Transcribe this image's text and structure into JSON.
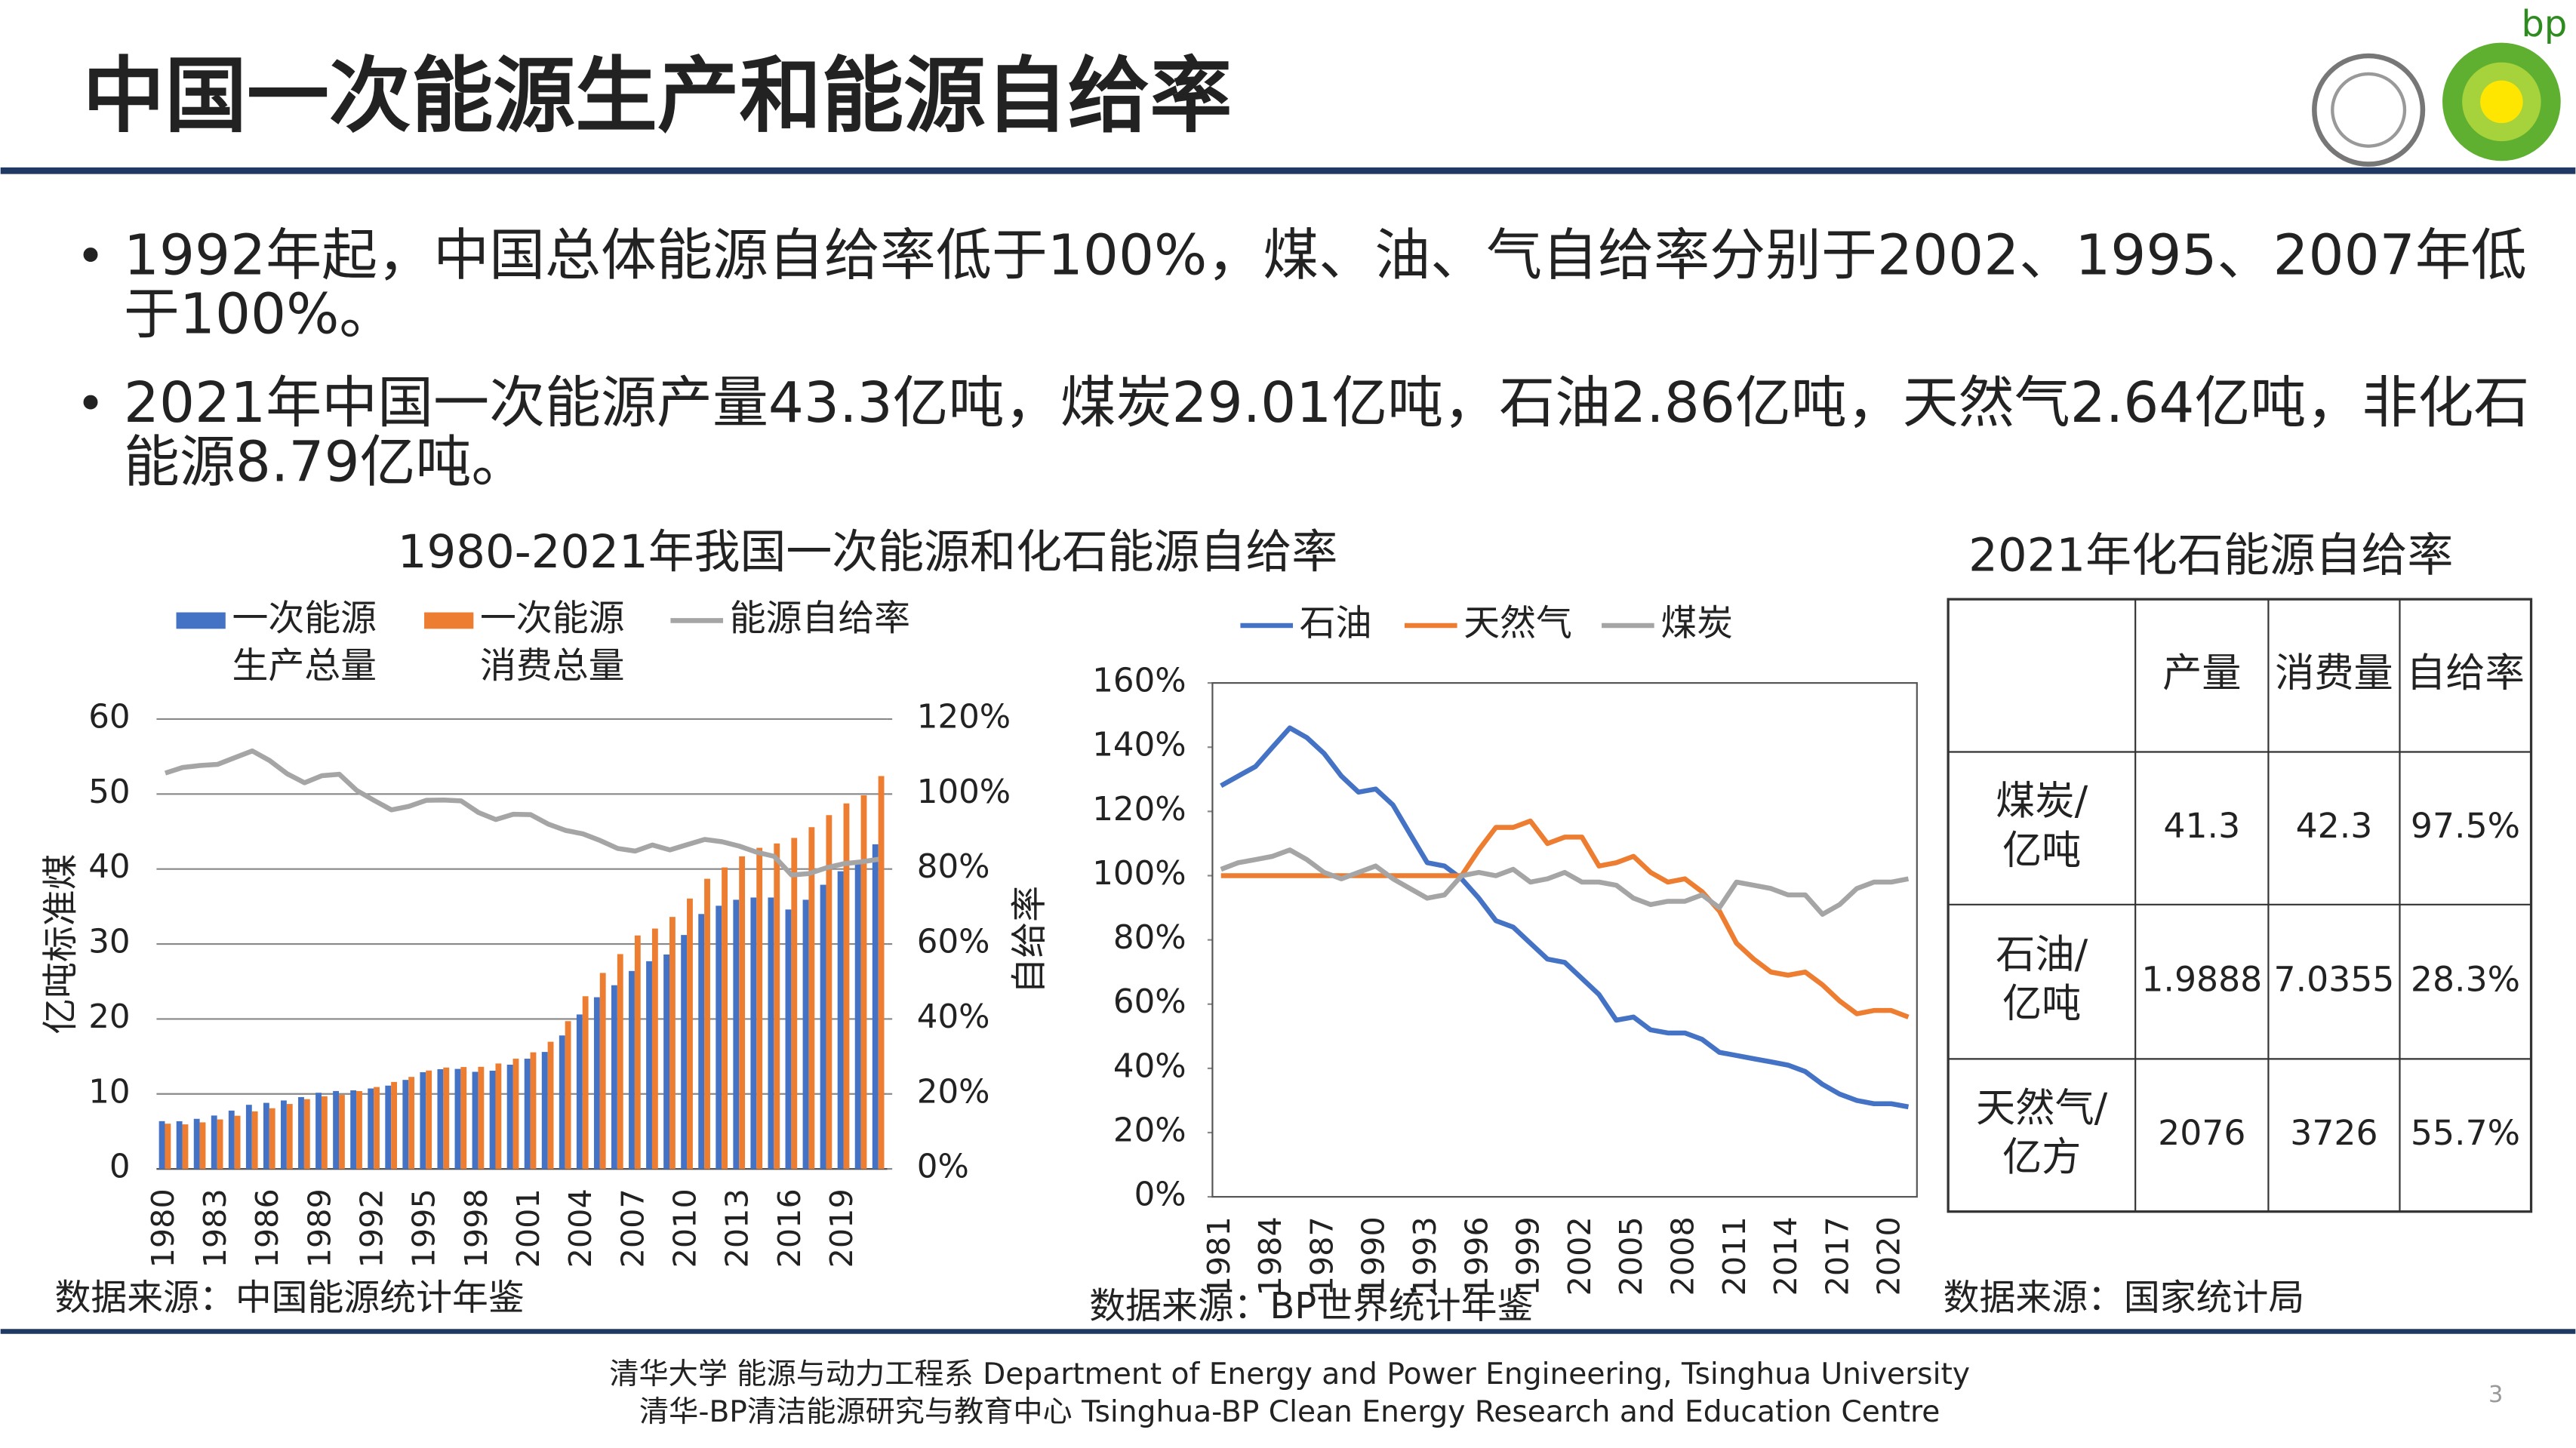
{
  "title": "中国一次能源生产和能源自给率",
  "logo_text": "bp",
  "bullets": [
    "1992年起，中国总体能源自给率低于100%，煤、油、气自给率分别于2002、1995、2007年低于100%。",
    "2021年中国一次能源产量43.3亿吨，煤炭29.01亿吨，石油2.86亿吨，天然气2.64亿吨，非化石能源8.79亿吨。"
  ],
  "chart_data": [
    {
      "type": "bar",
      "title": "1980-2021年我国一次能源和化石能源自给率",
      "ylabel": "亿吨标准煤",
      "categories": [
        "1980",
        null,
        null,
        "1983",
        null,
        null,
        "1986",
        null,
        null,
        "1989",
        null,
        null,
        "1992",
        null,
        null,
        "1995",
        null,
        null,
        "1998",
        null,
        null,
        "2001",
        null,
        null,
        "2004",
        null,
        null,
        "2007",
        null,
        null,
        "2010",
        null,
        null,
        "2013",
        null,
        null,
        "2016",
        null,
        null,
        "2019",
        null,
        null
      ],
      "series": [
        {
          "name": "一次能源生产总量",
          "color": "#4472c4",
          "values": [
            6.37,
            6.36,
            6.68,
            7.12,
            7.78,
            8.55,
            8.81,
            9.13,
            9.58,
            10.16,
            10.39,
            10.48,
            10.73,
            11.11,
            11.87,
            12.9,
            13.3,
            13.34,
            12.95,
            13.1,
            13.9,
            14.7,
            15.6,
            17.8,
            20.6,
            22.9,
            24.5,
            26.4,
            27.7,
            28.6,
            31.2,
            34.0,
            35.1,
            35.9,
            36.2,
            36.2,
            34.6,
            35.9,
            37.9,
            39.7,
            40.8,
            43.3
          ]
        },
        {
          "name": "一次能源消费总量",
          "color": "#ed7d31",
          "values": [
            6.03,
            5.94,
            6.21,
            6.6,
            7.09,
            7.67,
            8.09,
            8.66,
            9.3,
            9.69,
            9.87,
            10.38,
            10.92,
            11.6,
            12.27,
            13.12,
            13.52,
            13.59,
            13.62,
            14.06,
            14.7,
            15.55,
            16.96,
            19.71,
            23.03,
            26.14,
            28.65,
            31.14,
            32.06,
            33.61,
            36.06,
            38.7,
            40.21,
            41.69,
            42.83,
            43.41,
            44.15,
            45.58,
            47.19,
            48.75,
            49.83,
            52.4
          ]
        },
        {
          "name": "能源自给率",
          "color": "#a5a5a5",
          "type": "line",
          "axis": "y2",
          "values": [
            105.6,
            107.1,
            107.6,
            107.9,
            109.7,
            111.5,
            108.9,
            105.4,
            103.0,
            104.9,
            105.3,
            101.0,
            98.3,
            95.8,
            96.7,
            98.3,
            98.4,
            98.2,
            95.1,
            93.2,
            94.6,
            94.5,
            92.0,
            90.3,
            89.4,
            87.6,
            85.5,
            84.8,
            86.4,
            85.1,
            86.5,
            87.9,
            87.3,
            86.1,
            84.5,
            83.4,
            78.4,
            78.8,
            80.3,
            81.4,
            81.9,
            82.6
          ]
        }
      ],
      "ylim": [
        0,
        60
      ],
      "yticks": [
        0,
        10,
        20,
        30,
        40,
        50,
        60
      ],
      "y2lim": [
        0,
        120
      ],
      "y2ticks": [
        {
          "value": 0,
          "label": "0%"
        },
        {
          "value": 20,
          "label": "20%"
        },
        {
          "value": 40,
          "label": "40%"
        },
        {
          "value": 60,
          "label": "60%"
        },
        {
          "value": 80,
          "label": "80%"
        },
        {
          "value": 100,
          "label": "100%"
        },
        {
          "value": 120,
          "label": "120%"
        }
      ],
      "grid": true,
      "source": "数据来源：中国能源统计年鉴"
    },
    {
      "type": "line",
      "ylabel": "自给率",
      "categories": [
        "1981",
        null,
        null,
        "1984",
        null,
        null,
        "1987",
        null,
        null,
        "1990",
        null,
        null,
        "1993",
        null,
        null,
        "1996",
        null,
        null,
        "1999",
        null,
        null,
        "2002",
        null,
        null,
        "2005",
        null,
        null,
        "2008",
        null,
        null,
        "2011",
        null,
        null,
        "2014",
        null,
        null,
        "2017",
        null,
        null,
        "2020",
        null
      ],
      "series": [
        {
          "name": "石油",
          "color": "#4472c4",
          "values": [
            128,
            131,
            134,
            140,
            146,
            143,
            138,
            131,
            126,
            127,
            122,
            113,
            104,
            103,
            99,
            93,
            86,
            84,
            79,
            74,
            73,
            68,
            63,
            55,
            56,
            52,
            51,
            51,
            49,
            45,
            44,
            43,
            42,
            41,
            39,
            35,
            32,
            30,
            29,
            29,
            28
          ]
        },
        {
          "name": "天然气",
          "color": "#ed7d31",
          "values": [
            100,
            100,
            100,
            100,
            100,
            100,
            100,
            100,
            100,
            100,
            100,
            100,
            100,
            100,
            100,
            108,
            115,
            115,
            117,
            110,
            112,
            112,
            103,
            104,
            106,
            101,
            98,
            99,
            95,
            89,
            79,
            74,
            70,
            69,
            70,
            66,
            61,
            57,
            58,
            58,
            56
          ]
        },
        {
          "name": "煤炭",
          "color": "#a5a5a5",
          "values": [
            102,
            104,
            105,
            106,
            108,
            105,
            101,
            99,
            101,
            103,
            99,
            96,
            93,
            94,
            100,
            101,
            100,
            102,
            98,
            99,
            101,
            98,
            98,
            97,
            93,
            91,
            92,
            92,
            94,
            90,
            98,
            97,
            96,
            94,
            94,
            88,
            91,
            96,
            98,
            98,
            99
          ]
        }
      ],
      "ylim": [
        0,
        160
      ],
      "yticks": [
        {
          "value": 0,
          "label": "0%"
        },
        {
          "value": 20,
          "label": "20%"
        },
        {
          "value": 40,
          "label": "40%"
        },
        {
          "value": 60,
          "label": "60%"
        },
        {
          "value": 80,
          "label": "80%"
        },
        {
          "value": 100,
          "label": "100%"
        },
        {
          "value": 120,
          "label": "120%"
        },
        {
          "value": 140,
          "label": "140%"
        },
        {
          "value": 160,
          "label": "160%"
        }
      ],
      "grid": false,
      "source": "数据来源：BP世界统计年鉴"
    }
  ],
  "table": {
    "title": "2021年化石能源自给率",
    "header": [
      "产量",
      "消费量",
      "自给率"
    ],
    "rows": [
      {
        "label": [
          "煤炭/",
          "亿吨"
        ],
        "cells": [
          "41.3",
          "42.3",
          "97.5%"
        ]
      },
      {
        "label": [
          "石油/",
          "亿吨"
        ],
        "cells": [
          "1.9888",
          "7.0355",
          "28.3%"
        ]
      },
      {
        "label": [
          "天然气/",
          "亿方"
        ],
        "cells": [
          "2076",
          "3726",
          "55.7%"
        ]
      }
    ],
    "source": "数据来源：国家统计局"
  },
  "footer": [
    "清华大学 能源与动力工程系 Department of Energy and Power Engineering, Tsinghua University",
    "清华-BP清洁能源研究与教育中心 Tsinghua-BP Clean Energy Research and Education Centre"
  ],
  "page_number": "3"
}
